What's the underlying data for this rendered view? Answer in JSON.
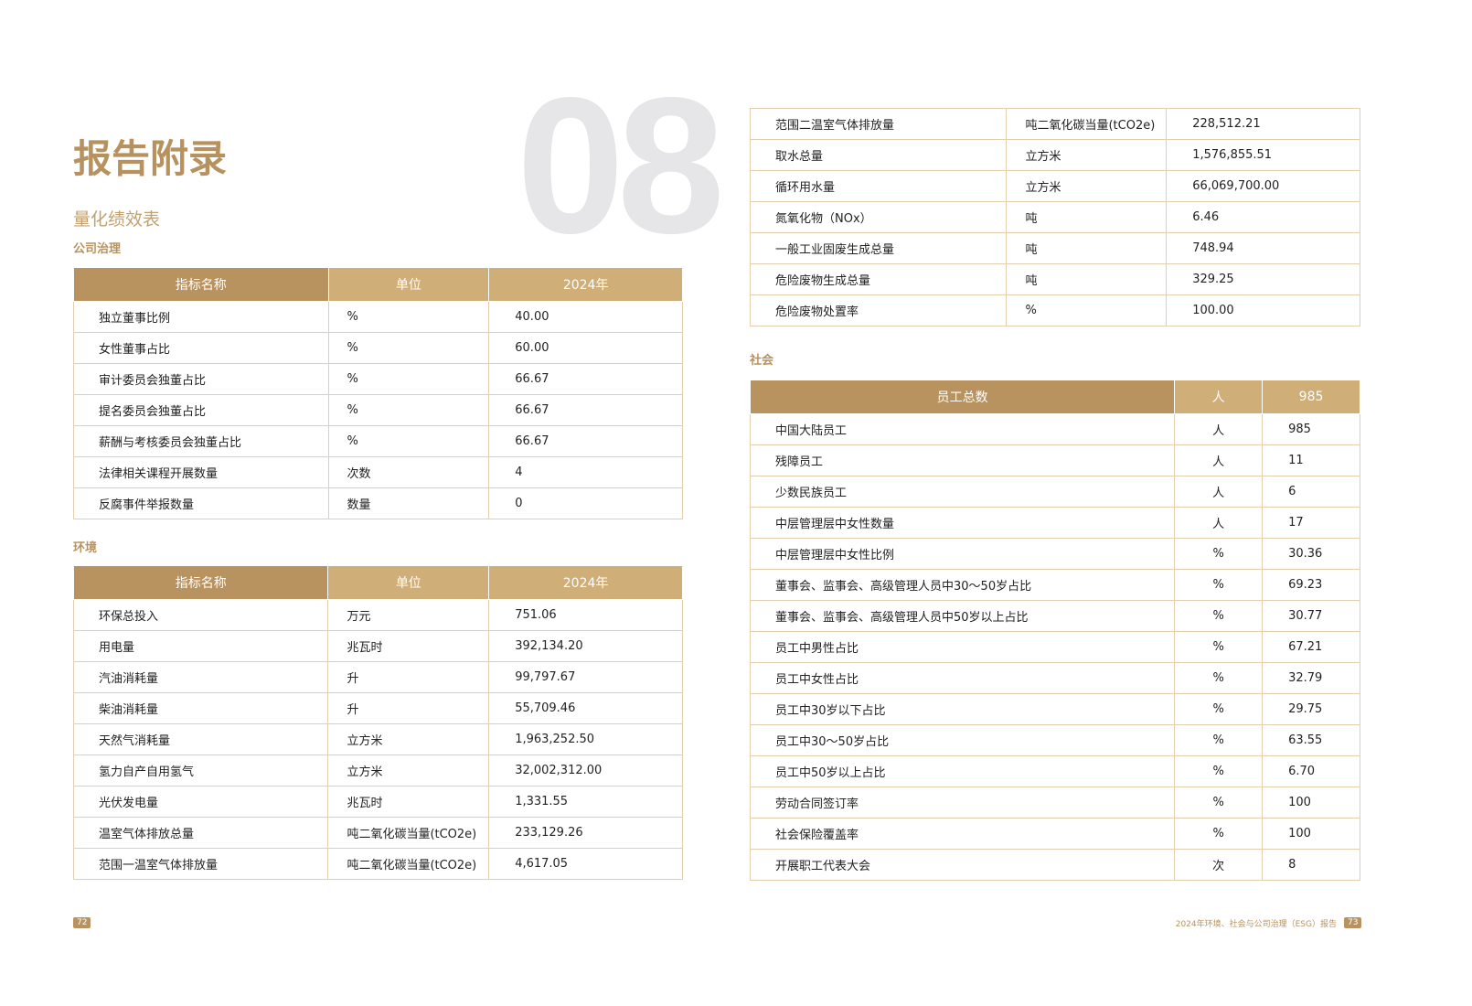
{
  "header": {
    "big_number": "08",
    "title": "报告附录",
    "subtitle": "量化绩效表"
  },
  "sections": {
    "governance": "公司治理",
    "environment": "环境",
    "social": "社会"
  },
  "columns": [
    "指标名称",
    "单位",
    "2024年"
  ],
  "governance_rows": [
    [
      "独立董事比例",
      "%",
      "40.00"
    ],
    [
      "女性董事占比",
      "%",
      "60.00"
    ],
    [
      "审计委员会独董占比",
      "%",
      "66.67"
    ],
    [
      "提名委员会独董占比",
      "%",
      "66.67"
    ],
    [
      "薪酬与考核委员会独董占比",
      "%",
      "66.67"
    ],
    [
      "法律相关课程开展数量",
      "次数",
      "4"
    ],
    [
      "反腐事件举报数量",
      "数量",
      "0"
    ]
  ],
  "environment_rows": [
    [
      "环保总投入",
      "万元",
      "751.06"
    ],
    [
      "用电量",
      "兆瓦时",
      "392,134.20"
    ],
    [
      "汽油消耗量",
      "升",
      "99,797.67"
    ],
    [
      "柴油消耗量",
      "升",
      "55,709.46"
    ],
    [
      "天然气消耗量",
      "立方米",
      "1,963,252.50"
    ],
    [
      "氢力自产自用氢气",
      "立方米",
      "32,002,312.00"
    ],
    [
      "光伏发电量",
      "兆瓦时",
      "1,331.55"
    ],
    [
      "温室气体排放总量",
      "吨二氧化碳当量(tCO2e)",
      "233,129.26"
    ],
    [
      "范围一温室气体排放量",
      "吨二氧化碳当量(tCO2e)",
      "4,617.05"
    ]
  ],
  "environment_rows_cont": [
    [
      "范围二温室气体排放量",
      "吨二氧化碳当量(tCO2e)",
      "228,512.21"
    ],
    [
      "取水总量",
      "立方米",
      "1,576,855.51"
    ],
    [
      "循环用水量",
      "立方米",
      "66,069,700.00"
    ],
    [
      "氮氧化物（NOx）",
      "吨",
      "6.46"
    ],
    [
      "一般工业固废生成总量",
      "吨",
      "748.94"
    ],
    [
      "危险废物生成总量",
      "吨",
      "329.25"
    ],
    [
      "危险废物处置率",
      "%",
      "100.00"
    ]
  ],
  "social_header": [
    "员工总数",
    "人",
    "985"
  ],
  "social_rows": [
    [
      "中国大陆员工",
      "人",
      "985"
    ],
    [
      "残障员工",
      "人",
      "11"
    ],
    [
      "少数民族员工",
      "人",
      "6"
    ],
    [
      "中层管理层中女性数量",
      "人",
      "17"
    ],
    [
      "中层管理层中女性比例",
      "%",
      "30.36"
    ],
    [
      "董事会、监事会、高级管理人员中30～50岁占比",
      "%",
      "69.23"
    ],
    [
      "董事会、监事会、高级管理人员中50岁以上占比",
      "%",
      "30.77"
    ],
    [
      "员工中男性占比",
      "%",
      "67.21"
    ],
    [
      "员工中女性占比",
      "%",
      "32.79"
    ],
    [
      "员工中30岁以下占比",
      "%",
      "29.75"
    ],
    [
      "员工中30～50岁占比",
      "%",
      "63.55"
    ],
    [
      "员工中50岁以上占比",
      "%",
      "6.70"
    ],
    [
      "劳动合同签订率",
      "%",
      "100"
    ],
    [
      "社会保险覆盖率",
      "%",
      "100"
    ],
    [
      "开展职工代表大会",
      "次",
      "8"
    ]
  ],
  "footer": {
    "left_page": "72",
    "report_name": "2024年环境、社会与公司治理（ESG）报告",
    "right_page": "73"
  },
  "colors": {
    "accent": "#b9935f",
    "header_light": "#cfae78",
    "watermark": "#e6e6e8"
  }
}
